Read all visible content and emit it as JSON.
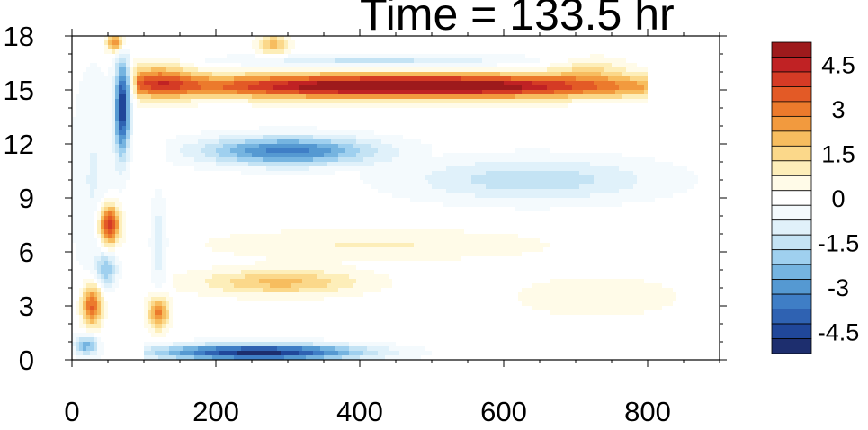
{
  "chart_data": {
    "type": "heatmap",
    "title": "Time = 133.5 hr",
    "xlabel": "",
    "ylabel": "",
    "xlim": [
      0,
      900
    ],
    "ylim": [
      0,
      18
    ],
    "x_ticks": [
      0,
      200,
      400,
      600,
      800
    ],
    "y_ticks": [
      0,
      3,
      6,
      9,
      12,
      15,
      18
    ],
    "colorbar": {
      "levels": [
        -5.25,
        -4.75,
        -4.25,
        -3.75,
        -3.25,
        -2.75,
        -2.25,
        -1.75,
        -1.25,
        -0.75,
        -0.25,
        0.25,
        0.75,
        1.25,
        1.75,
        2.25,
        2.75,
        3.25,
        3.75,
        4.25,
        4.75,
        5.25
      ],
      "tick_labels": [
        "4.5",
        "3",
        "1.5",
        "0",
        "-1.5",
        "-3",
        "-4.5"
      ],
      "tick_values": [
        4.5,
        3,
        1.5,
        0,
        -1.5,
        -3,
        -4.5
      ],
      "colors": [
        "#1d2e6e",
        "#20479a",
        "#2f62b2",
        "#3f7ec6",
        "#5599d2",
        "#75b4e0",
        "#9fd0ef",
        "#c4e3f4",
        "#e0f1fa",
        "#f4fafd",
        "#ffffff",
        "#fffbe8",
        "#fdeeb9",
        "#fbd88a",
        "#f7bd5f",
        "#f29a3e",
        "#ec7a2c",
        "#e35a26",
        "#d53b25",
        "#c02224",
        "#9e1a1c"
      ]
    },
    "features": [
      {
        "x": 470,
        "y": 15.2,
        "sx": 330,
        "sy": 0.65,
        "value": 6.0,
        "x0": 90,
        "x1": 800
      },
      {
        "x": 120,
        "y": 15.5,
        "sx": 50,
        "sy": 0.9,
        "value": 2.5,
        "x0": 80,
        "x1": 220
      },
      {
        "x": 300,
        "y": 11.6,
        "sx": 120,
        "sy": 0.8,
        "value": -3.5,
        "x0": 130,
        "x1": 500
      },
      {
        "x": 640,
        "y": 10.0,
        "sx": 170,
        "sy": 1.2,
        "value": -1.6,
        "x0": 400,
        "x1": 900
      },
      {
        "x": 420,
        "y": 16.6,
        "sx": 200,
        "sy": 0.35,
        "value": -1.4,
        "x0": 150,
        "x1": 720
      },
      {
        "x": 260,
        "y": 0.4,
        "sx": 140,
        "sy": 0.45,
        "value": -5.0,
        "x0": 100,
        "x1": 500
      },
      {
        "x": 290,
        "y": 4.3,
        "sx": 110,
        "sy": 0.7,
        "value": 1.9,
        "x0": 140,
        "x1": 620
      },
      {
        "x": 420,
        "y": 6.4,
        "sx": 220,
        "sy": 0.8,
        "value": 0.8,
        "x0": 180,
        "x1": 900
      },
      {
        "x": 730,
        "y": 3.5,
        "sx": 160,
        "sy": 1.6,
        "value": 0.4,
        "x0": 450,
        "x1": 900
      },
      {
        "x": 30,
        "y": 10.0,
        "sx": 30,
        "sy": 6.0,
        "value": -0.8,
        "x0": 0,
        "x1": 70
      },
      {
        "x": 52,
        "y": 7.5,
        "sx": 14,
        "sy": 1.1,
        "value": 4.6,
        "x0": 20,
        "x1": 85
      },
      {
        "x": 28,
        "y": 3.0,
        "sx": 14,
        "sy": 1.2,
        "value": 3.5,
        "x0": 0,
        "x1": 60
      },
      {
        "x": 48,
        "y": 5.0,
        "sx": 14,
        "sy": 0.9,
        "value": -2.0,
        "x0": 20,
        "x1": 80
      },
      {
        "x": 20,
        "y": 0.8,
        "sx": 16,
        "sy": 0.6,
        "value": -2.5,
        "x0": 0,
        "x1": 60
      },
      {
        "x": 70,
        "y": 14.0,
        "sx": 10,
        "sy": 2.6,
        "value": -4.8,
        "x0": 40,
        "x1": 100
      },
      {
        "x": 60,
        "y": 17.6,
        "sx": 12,
        "sy": 0.5,
        "value": 3.0,
        "x0": 40,
        "x1": 90
      },
      {
        "x": 120,
        "y": 2.6,
        "sx": 14,
        "sy": 0.9,
        "value": 3.0,
        "x0": 90,
        "x1": 160
      },
      {
        "x": 120,
        "y": 6.5,
        "sx": 10,
        "sy": 2.5,
        "value": -1.2,
        "x0": 90,
        "x1": 150
      },
      {
        "x": 280,
        "y": 17.5,
        "sx": 20,
        "sy": 0.6,
        "value": 2.0,
        "x0": 240,
        "x1": 320
      },
      {
        "x": 720,
        "y": 16.2,
        "sx": 50,
        "sy": 0.6,
        "value": 1.0,
        "x0": 650,
        "x1": 900
      }
    ]
  }
}
